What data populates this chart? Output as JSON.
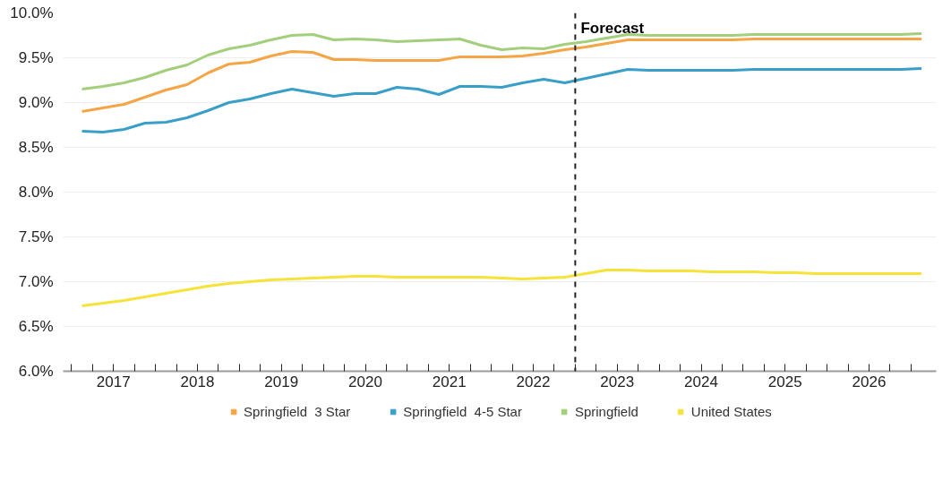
{
  "chart_data": {
    "type": "line",
    "x": [
      2017.125,
      2017.375,
      2017.625,
      2017.875,
      2018.125,
      2018.375,
      2018.625,
      2018.875,
      2019.125,
      2019.375,
      2019.625,
      2019.875,
      2020.125,
      2020.375,
      2020.625,
      2020.875,
      2021.125,
      2021.375,
      2021.625,
      2021.875,
      2022.125,
      2022.375,
      2022.625,
      2022.875,
      2023.125,
      2023.375,
      2023.625,
      2023.875,
      2024.125,
      2024.375,
      2024.625,
      2024.875,
      2025.125,
      2025.375,
      2025.625,
      2025.875,
      2026.125,
      2026.375,
      2026.625,
      2026.875,
      2027.125
    ],
    "series": [
      {
        "name": "Springfield  3 Star",
        "color": "#f5a545",
        "values": [
          8.9,
          8.94,
          8.98,
          9.06,
          9.14,
          9.2,
          9.33,
          9.43,
          9.45,
          9.52,
          9.57,
          9.56,
          9.48,
          9.48,
          9.47,
          9.47,
          9.47,
          9.47,
          9.51,
          9.51,
          9.51,
          9.52,
          9.55,
          9.59,
          9.62,
          9.66,
          9.7,
          9.7,
          9.7,
          9.7,
          9.7,
          9.7,
          9.71,
          9.71,
          9.71,
          9.71,
          9.71,
          9.71,
          9.71,
          9.71,
          9.71
        ]
      },
      {
        "name": "Springfield  4-5 Star",
        "color": "#3a9fc8",
        "values": [
          8.68,
          8.67,
          8.7,
          8.77,
          8.78,
          8.83,
          8.91,
          9.0,
          9.04,
          9.1,
          9.15,
          9.11,
          9.07,
          9.1,
          9.1,
          9.17,
          9.15,
          9.09,
          9.18,
          9.18,
          9.17,
          9.22,
          9.26,
          9.22,
          9.27,
          9.32,
          9.37,
          9.36,
          9.36,
          9.36,
          9.36,
          9.36,
          9.37,
          9.37,
          9.37,
          9.37,
          9.37,
          9.37,
          9.37,
          9.37,
          9.38
        ]
      },
      {
        "name": "Springfield",
        "color": "#a3cf7c",
        "values": [
          9.15,
          9.18,
          9.22,
          9.28,
          9.36,
          9.42,
          9.53,
          9.6,
          9.64,
          9.7,
          9.75,
          9.76,
          9.7,
          9.71,
          9.7,
          9.68,
          9.69,
          9.7,
          9.71,
          9.64,
          9.59,
          9.61,
          9.6,
          9.65,
          9.68,
          9.72,
          9.76,
          9.75,
          9.75,
          9.75,
          9.75,
          9.75,
          9.76,
          9.76,
          9.76,
          9.76,
          9.76,
          9.76,
          9.76,
          9.76,
          9.77
        ]
      },
      {
        "name": "United States",
        "color": "#f5e33a",
        "values": [
          6.73,
          6.76,
          6.79,
          6.83,
          6.87,
          6.91,
          6.95,
          6.98,
          7.0,
          7.02,
          7.03,
          7.04,
          7.05,
          7.06,
          7.06,
          7.05,
          7.05,
          7.05,
          7.05,
          7.05,
          7.04,
          7.03,
          7.04,
          7.05,
          7.09,
          7.13,
          7.13,
          7.12,
          7.12,
          7.12,
          7.11,
          7.11,
          7.11,
          7.1,
          7.1,
          7.09,
          7.09,
          7.09,
          7.09,
          7.09,
          7.09
        ]
      }
    ],
    "xlim": [
      2016.9,
      2027.3
    ],
    "xticks": [
      {
        "value": 2017,
        "label": null
      },
      {
        "value": 2017.25,
        "label": null
      },
      {
        "value": 2017.5,
        "label": "2017"
      },
      {
        "value": 2017.75,
        "label": null
      },
      {
        "value": 2018,
        "label": null
      },
      {
        "value": 2018.25,
        "label": null
      },
      {
        "value": 2018.5,
        "label": "2018"
      },
      {
        "value": 2018.75,
        "label": null
      },
      {
        "value": 2019,
        "label": null
      },
      {
        "value": 2019.25,
        "label": null
      },
      {
        "value": 2019.5,
        "label": "2019"
      },
      {
        "value": 2019.75,
        "label": null
      },
      {
        "value": 2020,
        "label": null
      },
      {
        "value": 2020.25,
        "label": null
      },
      {
        "value": 2020.5,
        "label": "2020"
      },
      {
        "value": 2020.75,
        "label": null
      },
      {
        "value": 2021,
        "label": null
      },
      {
        "value": 2021.25,
        "label": null
      },
      {
        "value": 2021.5,
        "label": "2021"
      },
      {
        "value": 2021.75,
        "label": null
      },
      {
        "value": 2022,
        "label": null
      },
      {
        "value": 2022.25,
        "label": null
      },
      {
        "value": 2022.5,
        "label": "2022"
      },
      {
        "value": 2022.75,
        "label": null
      },
      {
        "value": 2023,
        "label": null
      },
      {
        "value": 2023.25,
        "label": null
      },
      {
        "value": 2023.5,
        "label": "2023"
      },
      {
        "value": 2023.75,
        "label": null
      },
      {
        "value": 2024,
        "label": null
      },
      {
        "value": 2024.25,
        "label": null
      },
      {
        "value": 2024.5,
        "label": "2024"
      },
      {
        "value": 2024.75,
        "label": null
      },
      {
        "value": 2025,
        "label": null
      },
      {
        "value": 2025.25,
        "label": null
      },
      {
        "value": 2025.5,
        "label": "2025"
      },
      {
        "value": 2025.75,
        "label": null
      },
      {
        "value": 2026,
        "label": null
      },
      {
        "value": 2026.25,
        "label": null
      },
      {
        "value": 2026.5,
        "label": "2026"
      },
      {
        "value": 2026.75,
        "label": null
      },
      {
        "value": 2027,
        "label": null
      }
    ],
    "ylim": [
      6.0,
      10.0
    ],
    "yticks": [
      {
        "value": 6.0,
        "label": "6.0%"
      },
      {
        "value": 6.5,
        "label": "6.5%"
      },
      {
        "value": 7.0,
        "label": "7.0%"
      },
      {
        "value": 7.5,
        "label": "7.5%"
      },
      {
        "value": 8.0,
        "label": "8.0%"
      },
      {
        "value": 8.5,
        "label": "8.5%"
      },
      {
        "value": 9.0,
        "label": "9.0%"
      },
      {
        "value": 9.5,
        "label": "9.5%"
      },
      {
        "value": 10.0,
        "label": "10.0%"
      }
    ],
    "ref_lines": [
      {
        "axis": "x",
        "value": 2023,
        "label": "Forecast",
        "color": "#222222",
        "line_style": "dashed"
      }
    ],
    "grid": "y",
    "legend": "bottom",
    "line_style": "solid",
    "marker": "none"
  }
}
